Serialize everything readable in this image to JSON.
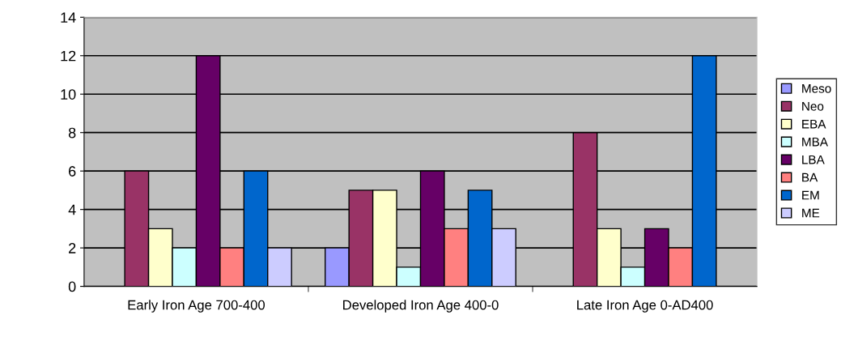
{
  "chart_data": {
    "type": "bar",
    "categories": [
      "Early Iron Age 700-400",
      "Developed Iron Age 400-0",
      "Late Iron Age 0-AD400"
    ],
    "series": [
      {
        "name": "Meso",
        "color": "#9999ff",
        "values": [
          0,
          2,
          0
        ]
      },
      {
        "name": "Neo",
        "color": "#993366",
        "values": [
          6,
          5,
          8
        ]
      },
      {
        "name": "EBA",
        "color": "#ffffcc",
        "values": [
          3,
          5,
          3
        ]
      },
      {
        "name": "MBA",
        "color": "#ccffff",
        "values": [
          2,
          1,
          1
        ]
      },
      {
        "name": "LBA",
        "color": "#660066",
        "values": [
          12,
          6,
          3
        ]
      },
      {
        "name": "BA",
        "color": "#ff8080",
        "values": [
          2,
          3,
          2
        ]
      },
      {
        "name": "EM",
        "color": "#0066cc",
        "values": [
          6,
          5,
          12
        ]
      },
      {
        "name": "ME",
        "color": "#ccccff",
        "values": [
          2,
          3,
          0
        ]
      }
    ],
    "ylim": [
      0,
      14
    ],
    "yticks": [
      0,
      2,
      4,
      6,
      8,
      10,
      12,
      14
    ],
    "grid": "y",
    "legend": "right"
  }
}
